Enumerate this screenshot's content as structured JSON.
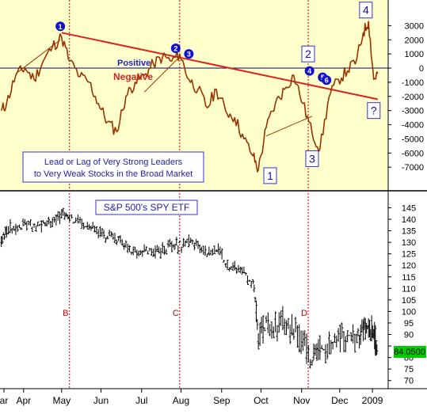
{
  "chart_data": [
    {
      "type": "line",
      "panel": "top",
      "background": "#ffffcc",
      "series": [
        {
          "color": "#993300",
          "x": [
            "Mar 28",
            "Apr 1",
            "Apr 8",
            "Apr 15",
            "Apr 22",
            "Apr 29",
            "May 6",
            "May 13",
            "May 19",
            "May 27",
            "Jun 3",
            "Jun 10",
            "Jun 17",
            "Jun 24",
            "Jul 1",
            "Jul 8",
            "Jul 15",
            "Jul 22",
            "Jul 29",
            "Aug 5",
            "Aug 11",
            "Aug 18",
            "Aug 25",
            "Sep 1",
            "Sep 8",
            "Sep 15",
            "Sep 22",
            "Sep 29",
            "Oct 6",
            "Oct 10",
            "Oct 16",
            "Oct 23",
            "Oct 30",
            "Nov 6",
            "Nov 13",
            "Nov 20",
            "Nov 26",
            "Dec 3",
            "Dec 10",
            "Dec 17",
            "Dec 24",
            "Dec 29",
            "Jan 2",
            "Jan 6",
            "Jan 9"
          ],
          "y": [
            -3000,
            -2500,
            -500,
            0,
            -800,
            500,
            1500,
            2200,
            500,
            -600,
            -1000,
            -2500,
            -3800,
            -4500,
            -2000,
            -1000,
            -500,
            300,
            800,
            500,
            1000,
            -800,
            -1500,
            -2800,
            -1500,
            -3000,
            -3500,
            -5000,
            -6200,
            -7200,
            -4200,
            -2500,
            -1500,
            -500,
            -2500,
            -4600,
            -5700,
            -2000,
            -800,
            -200,
            600,
            2500,
            3300,
            -800,
            -400
          ]
        }
      ],
      "trendlines": [
        {
          "label": "main",
          "color": "#dd2222",
          "points": [
            [
              "May 13",
              2500
            ],
            [
              "Jan 9",
              -2200
            ]
          ]
        },
        {
          "label": "rise-1",
          "color": "#993300",
          "points": [
            [
              "Apr 8",
              -400
            ],
            [
              "May 12",
              2000
            ]
          ]
        },
        {
          "label": "rise-2",
          "color": "#993300",
          "points": [
            [
              "Jul 15",
              -1700
            ],
            [
              "Aug 11",
              800
            ]
          ]
        },
        {
          "label": "rise-3",
          "color": "#993300",
          "points": [
            [
              "Oct 16",
              -4800
            ],
            [
              "Nov 20",
              -3400
            ]
          ]
        }
      ],
      "zero_line_color": "#000080",
      "yticks": [
        3000,
        2000,
        1000,
        0,
        -1000,
        -2000,
        -3000,
        -4000,
        -5000,
        -6000,
        -7000
      ],
      "ylim": [
        -8500,
        4700
      ],
      "zero_labels": {
        "above": "Positive",
        "below": "Negative"
      },
      "circle_markers": [
        {
          "label": "1",
          "x": "May 12",
          "y": 2950
        },
        {
          "label": "2",
          "x": "Aug 8",
          "y": 1400
        },
        {
          "label": "3",
          "x": "Aug 18",
          "y": 1000
        },
        {
          "label": "4",
          "x": "Nov 18",
          "y": -200
        },
        {
          "label": "5",
          "x": "Nov 28",
          "y": -650
        },
        {
          "label": "6",
          "x": "Dec 1",
          "y": -850
        }
      ],
      "box_markers": [
        {
          "label": "1",
          "x": "Oct 19",
          "y": -7600
        },
        {
          "label": "2",
          "x": "Nov 17",
          "y": 1000
        },
        {
          "label": "3",
          "x": "Nov 20",
          "y": -6400
        },
        {
          "label": "4",
          "x": "Dec 31",
          "y": 4100
        },
        {
          "label": "?",
          "x": "Jan 6",
          "y": -3000
        }
      ],
      "annotation": [
        "Lead or Lag of Very Strong Leaders",
        "to Very Weak Stocks in the Broad Market"
      ]
    },
    {
      "type": "ohlc",
      "panel": "bottom",
      "title": "S&P 500's SPY ETF",
      "last_value": "84.0500",
      "last_value_color": "#00cc00",
      "x": [
        "Mar 28",
        "Apr 1",
        "Apr 8",
        "Apr 15",
        "Apr 22",
        "Apr 29",
        "May 6",
        "May 13",
        "May 19",
        "May 27",
        "Jun 3",
        "Jun 10",
        "Jun 17",
        "Jun 24",
        "Jul 1",
        "Jul 8",
        "Jul 15",
        "Jul 22",
        "Jul 29",
        "Aug 5",
        "Aug 11",
        "Aug 18",
        "Aug 25",
        "Sep 1",
        "Sep 8",
        "Sep 15",
        "Sep 22",
        "Sep 29",
        "Oct 6",
        "Oct 10",
        "Oct 16",
        "Oct 23",
        "Oct 30",
        "Nov 6",
        "Nov 13",
        "Nov 20",
        "Nov 26",
        "Dec 3",
        "Dec 10",
        "Dec 17",
        "Dec 24",
        "Dec 29",
        "Jan 2",
        "Jan 6",
        "Jan 9"
      ],
      "close": [
        130,
        135,
        137,
        138,
        136,
        138,
        140,
        142,
        141,
        138,
        136,
        134,
        132,
        131,
        128,
        126,
        127,
        126,
        127,
        128,
        129,
        130,
        128,
        126,
        127,
        121,
        119,
        116,
        112,
        90,
        95,
        93,
        96,
        91,
        88,
        78,
        84,
        85,
        88,
        89,
        90,
        92,
        93,
        91,
        84
      ],
      "yticks": [
        145,
        140,
        135,
        130,
        125,
        120,
        115,
        110,
        105,
        100,
        95,
        90,
        85,
        80,
        75,
        70
      ],
      "ylim": [
        67.5,
        151
      ],
      "xticks": [
        {
          "label": "ar",
          "x": "Mar 30"
        },
        {
          "label": "Apr",
          "x": "Apr 14"
        },
        {
          "label": "May",
          "x": "May 13"
        },
        {
          "label": "Jun",
          "x": "Jun 12"
        },
        {
          "label": "Jul",
          "x": "Jul 13"
        },
        {
          "label": "Aug",
          "x": "Aug 12"
        },
        {
          "label": "Sep",
          "x": "Sep 12"
        },
        {
          "label": "Oct",
          "x": "Oct 12"
        },
        {
          "label": "Nov",
          "x": "Nov 12"
        },
        {
          "label": "Dec",
          "x": "Dec 11"
        },
        {
          "label": "2009",
          "x": "Jan 5"
        }
      ],
      "vlines": [
        {
          "label": "B",
          "x": "May 19"
        },
        {
          "label": "C",
          "x": "Aug 11"
        },
        {
          "label": "D",
          "x": "Nov 17"
        }
      ],
      "vline_color": "#cc0000"
    }
  ]
}
